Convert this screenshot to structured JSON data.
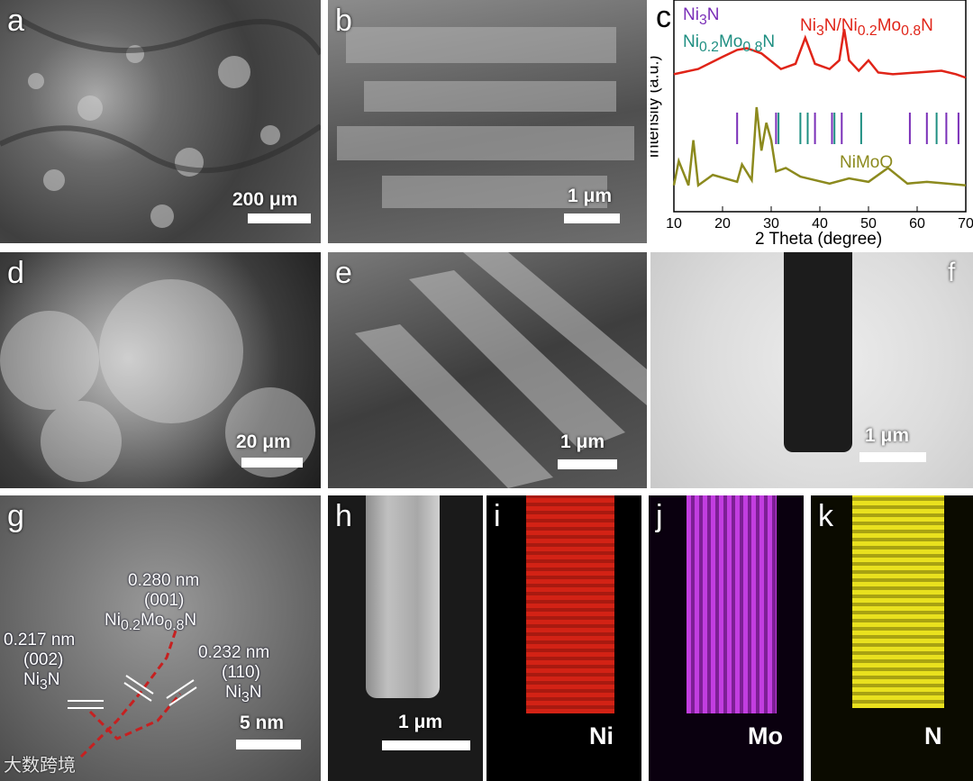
{
  "panels": {
    "a": {
      "label": "a",
      "scale": "200 μm"
    },
    "b": {
      "label": "b",
      "scale": "1 μm"
    },
    "c": {
      "label": "c"
    },
    "d": {
      "label": "d",
      "scale": "20 μm"
    },
    "e": {
      "label": "e",
      "scale": "1 μm"
    },
    "f": {
      "label": "f",
      "scale": "1 μm"
    },
    "g": {
      "label": "g",
      "scale": "5 nm",
      "ann1": [
        "0.280 nm",
        "(001)",
        "Ni0.2Mo0.8N"
      ],
      "ann2": [
        "0.217 nm",
        "(002)",
        "Ni3N"
      ],
      "ann3": [
        "0.232 nm",
        "(110)",
        "Ni3N"
      ]
    },
    "h": {
      "label": "h",
      "scale": "1 μm"
    },
    "i": {
      "label": "i",
      "element": "Ni"
    },
    "j": {
      "label": "j",
      "element": "Mo"
    },
    "k": {
      "label": "k",
      "element": "N"
    }
  },
  "chart_data": {
    "type": "line",
    "xlabel": "2 Theta (degree)",
    "ylabel": "Intensity (a.u.)",
    "xlim": [
      10,
      70
    ],
    "xticks": [
      10,
      20,
      30,
      40,
      50,
      60,
      70
    ],
    "legend": [
      "Ni3N",
      "Ni0.2Mo0.8N",
      "Ni3N/Ni0.2Mo0.8N",
      "NiMoO"
    ],
    "colors": {
      "Ni3N": "#7a2fb8",
      "Ni0.2Mo0.8N": "#1f8f82",
      "Ni3N/Ni0.2Mo0.8N": "#e02418",
      "NiMoO": "#8c8a1e"
    },
    "series": [
      {
        "name": "Ni3N/Ni0.2Mo0.8N",
        "x": [
          10,
          15,
          20,
          23,
          25,
          28,
          32,
          35,
          37,
          39,
          42,
          44,
          45,
          46,
          48,
          50,
          52,
          55,
          60,
          65,
          68,
          70
        ],
        "y": [
          0.74,
          0.77,
          0.84,
          0.88,
          0.89,
          0.86,
          0.77,
          0.8,
          0.95,
          0.8,
          0.77,
          0.82,
          1.0,
          0.82,
          0.76,
          0.82,
          0.75,
          0.74,
          0.75,
          0.76,
          0.74,
          0.72
        ]
      },
      {
        "name": "NiMoO",
        "x": [
          10,
          11,
          13,
          14,
          15,
          18,
          23,
          24,
          26,
          27,
          28,
          29,
          30,
          31,
          33,
          36,
          42,
          46,
          50,
          54,
          58,
          62,
          66,
          70
        ],
        "y": [
          0.1,
          0.24,
          0.1,
          0.36,
          0.1,
          0.16,
          0.12,
          0.22,
          0.13,
          0.55,
          0.3,
          0.46,
          0.36,
          0.18,
          0.2,
          0.15,
          0.11,
          0.14,
          0.12,
          0.2,
          0.11,
          0.12,
          0.11,
          0.1
        ]
      }
    ],
    "reference_lines": {
      "Ni3N": [
        23,
        31,
        39,
        42.5,
        44.5,
        58.5,
        62,
        66,
        68.5
      ],
      "Ni0.2Mo0.8N": [
        31.5,
        36,
        37.5,
        43,
        48.5,
        64
      ]
    }
  },
  "watermark": "大数跨境"
}
